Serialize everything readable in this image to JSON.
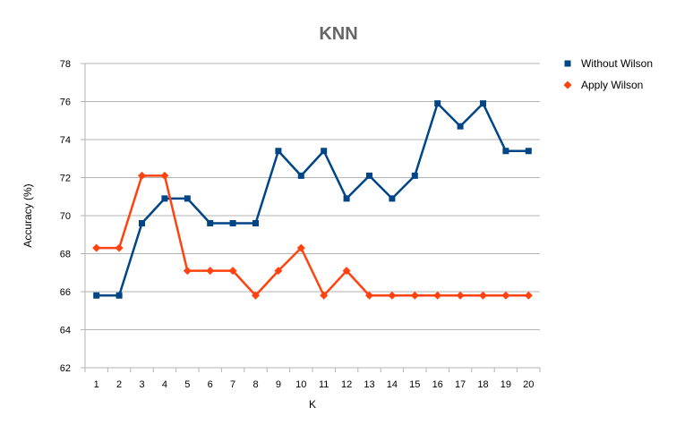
{
  "chart_data": {
    "type": "line",
    "title": "KNN",
    "xlabel": "K",
    "ylabel": "Accuracy (%)",
    "x": [
      1,
      2,
      3,
      4,
      5,
      6,
      7,
      8,
      9,
      10,
      11,
      12,
      13,
      14,
      15,
      16,
      17,
      18,
      19,
      20
    ],
    "ylim": [
      62,
      78
    ],
    "yticks": [
      62,
      64,
      66,
      68,
      70,
      72,
      74,
      76,
      78
    ],
    "grid": true,
    "legend_position": "right",
    "series": [
      {
        "name": "Without Wilson",
        "color": "#004586",
        "marker": "square",
        "values": [
          65.8,
          65.8,
          69.6,
          70.9,
          70.9,
          69.6,
          69.6,
          69.6,
          73.4,
          72.1,
          73.4,
          70.9,
          72.1,
          70.9,
          72.1,
          75.9,
          74.7,
          75.9,
          73.4,
          73.4
        ]
      },
      {
        "name": "Apply Wilson",
        "color": "#ff420e",
        "marker": "diamond",
        "values": [
          68.3,
          68.3,
          72.1,
          72.1,
          67.1,
          67.1,
          67.1,
          65.8,
          67.1,
          68.3,
          65.8,
          67.1,
          65.8,
          65.8,
          65.8,
          65.8,
          65.8,
          65.8,
          65.8,
          65.8
        ]
      }
    ]
  }
}
